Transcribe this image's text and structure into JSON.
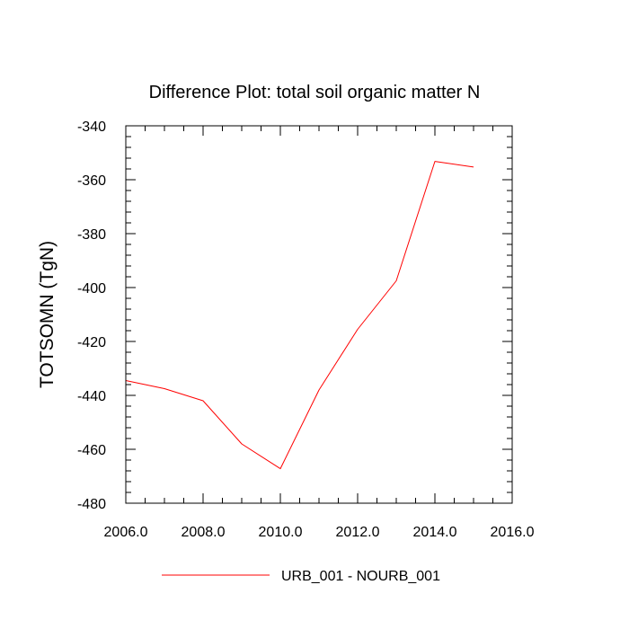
{
  "chart_data": {
    "type": "line",
    "title": "Difference Plot: total soil organic matter N",
    "xlabel": "",
    "ylabel": "TOTSOMN  (TgN)",
    "xlim": [
      2006,
      2016
    ],
    "ylim": [
      -480,
      -340
    ],
    "x_ticks": [
      2006,
      2008,
      2010,
      2012,
      2014,
      2016
    ],
    "x_tick_labels": [
      "2006.0",
      "2008.0",
      "2010.0",
      "2012.0",
      "2014.0",
      "2016.0"
    ],
    "x_minor_step": 0.5,
    "y_ticks": [
      -480,
      -460,
      -440,
      -420,
      -400,
      -380,
      -360,
      -340
    ],
    "y_tick_labels": [
      "-480",
      "-460",
      "-440",
      "-420",
      "-400",
      "-380",
      "-360",
      "-340"
    ],
    "y_minor_step": 4,
    "grid": false,
    "legend_position": "bottom-center",
    "series": [
      {
        "name": "URB_001 - NOURB_001",
        "color": "#ff0000",
        "x": [
          2006,
          2007,
          2008,
          2009,
          2010,
          2011,
          2012,
          2013,
          2014,
          2015
        ],
        "y": [
          -434.5,
          -437.5,
          -442,
          -458,
          -467.2,
          -438,
          -415.5,
          -397.5,
          -353.2,
          -355.3
        ]
      }
    ]
  }
}
